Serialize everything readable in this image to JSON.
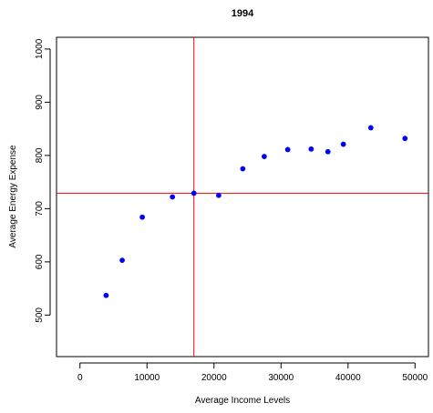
{
  "chart_data": {
    "type": "scatter",
    "title": "1994",
    "xlabel": "Average Income Levels",
    "ylabel": "Average Energy Expense",
    "xlim": [
      -3500,
      52000
    ],
    "ylim": [
      422,
      1022
    ],
    "xticks": [
      0,
      10000,
      20000,
      30000,
      40000,
      50000
    ],
    "xtick_labels": [
      "0",
      "10000",
      "20000",
      "30000",
      "40000",
      "50000"
    ],
    "yticks": [
      500,
      600,
      700,
      800,
      900,
      1000
    ],
    "ytick_labels": [
      "500",
      "600",
      "700",
      "800",
      "900",
      "1000"
    ],
    "grid": false,
    "points": [
      {
        "x": 3900,
        "y": 537
      },
      {
        "x": 6300,
        "y": 603
      },
      {
        "x": 9300,
        "y": 684
      },
      {
        "x": 13800,
        "y": 722
      },
      {
        "x": 17000,
        "y": 729
      },
      {
        "x": 20700,
        "y": 725
      },
      {
        "x": 24300,
        "y": 775
      },
      {
        "x": 27500,
        "y": 798
      },
      {
        "x": 31000,
        "y": 811
      },
      {
        "x": 34500,
        "y": 812
      },
      {
        "x": 37000,
        "y": 807
      },
      {
        "x": 39300,
        "y": 821
      },
      {
        "x": 43400,
        "y": 852
      },
      {
        "x": 48500,
        "y": 832
      }
    ],
    "reference_lines": {
      "vertical_x": 17000,
      "horizontal_y": 729,
      "color": "#ff0000"
    },
    "point_color": "#0000ff"
  }
}
